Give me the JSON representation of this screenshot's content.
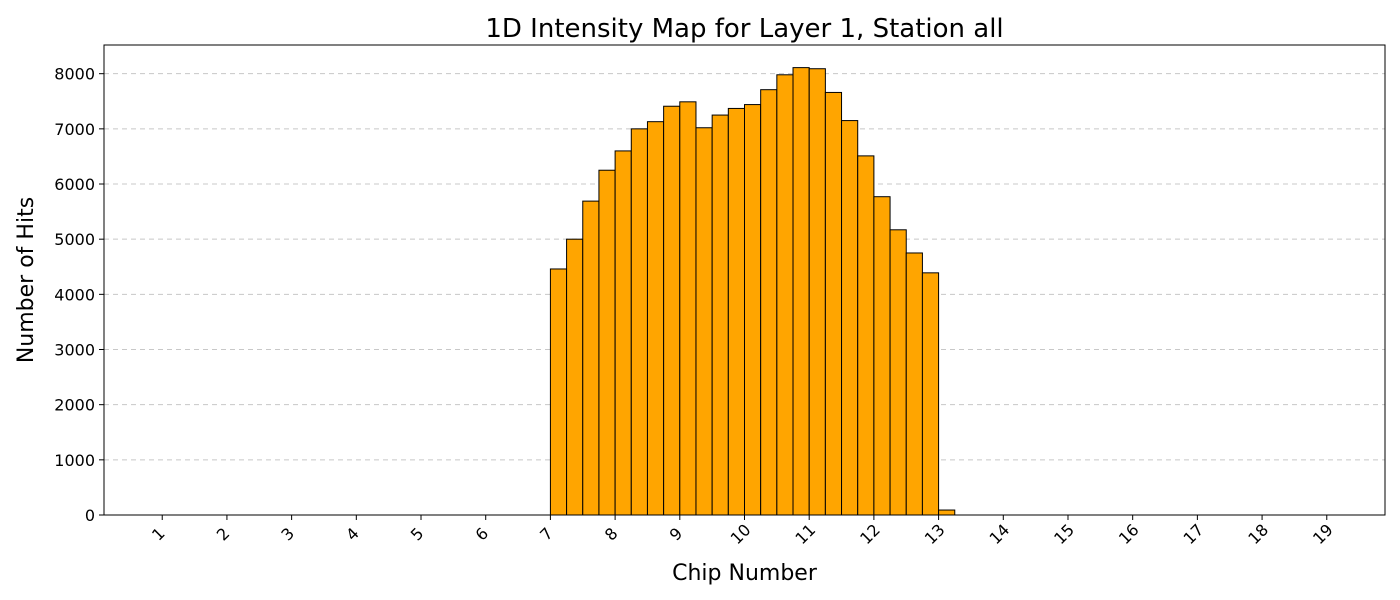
{
  "chart_data": {
    "type": "bar",
    "title": "1D Intensity Map for Layer 1, Station all",
    "xlabel": "Chip Number",
    "ylabel": "Number of Hits",
    "xlim": [
      0.1,
      19.9
    ],
    "ylim": [
      0,
      8520
    ],
    "xticks": [
      1,
      2,
      3,
      4,
      5,
      6,
      7,
      8,
      9,
      10,
      11,
      12,
      13,
      14,
      15,
      16,
      17,
      18,
      19
    ],
    "yticks": [
      0,
      1000,
      2000,
      3000,
      4000,
      5000,
      6000,
      7000,
      8000
    ],
    "grid": "y-dashed",
    "bar_color": "#FFA500",
    "edge_color": "#000000",
    "bin_width": 0.25,
    "bins": [
      {
        "x_start": 7.0,
        "value": 4460
      },
      {
        "x_start": 7.25,
        "value": 5000
      },
      {
        "x_start": 7.5,
        "value": 5690
      },
      {
        "x_start": 7.75,
        "value": 6250
      },
      {
        "x_start": 8.0,
        "value": 6600
      },
      {
        "x_start": 8.25,
        "value": 7000
      },
      {
        "x_start": 8.5,
        "value": 7130
      },
      {
        "x_start": 8.75,
        "value": 7410
      },
      {
        "x_start": 9.0,
        "value": 7490
      },
      {
        "x_start": 9.25,
        "value": 7020
      },
      {
        "x_start": 9.5,
        "value": 7250
      },
      {
        "x_start": 9.75,
        "value": 7370
      },
      {
        "x_start": 10.0,
        "value": 7440
      },
      {
        "x_start": 10.25,
        "value": 7710
      },
      {
        "x_start": 10.5,
        "value": 7980
      },
      {
        "x_start": 10.75,
        "value": 8110
      },
      {
        "x_start": 11.0,
        "value": 8090
      },
      {
        "x_start": 11.25,
        "value": 7660
      },
      {
        "x_start": 11.5,
        "value": 7150
      },
      {
        "x_start": 11.75,
        "value": 6510
      },
      {
        "x_start": 12.0,
        "value": 5770
      },
      {
        "x_start": 12.25,
        "value": 5170
      },
      {
        "x_start": 12.5,
        "value": 4750
      },
      {
        "x_start": 12.75,
        "value": 4390
      },
      {
        "x_start": 13.0,
        "value": 90
      }
    ]
  }
}
